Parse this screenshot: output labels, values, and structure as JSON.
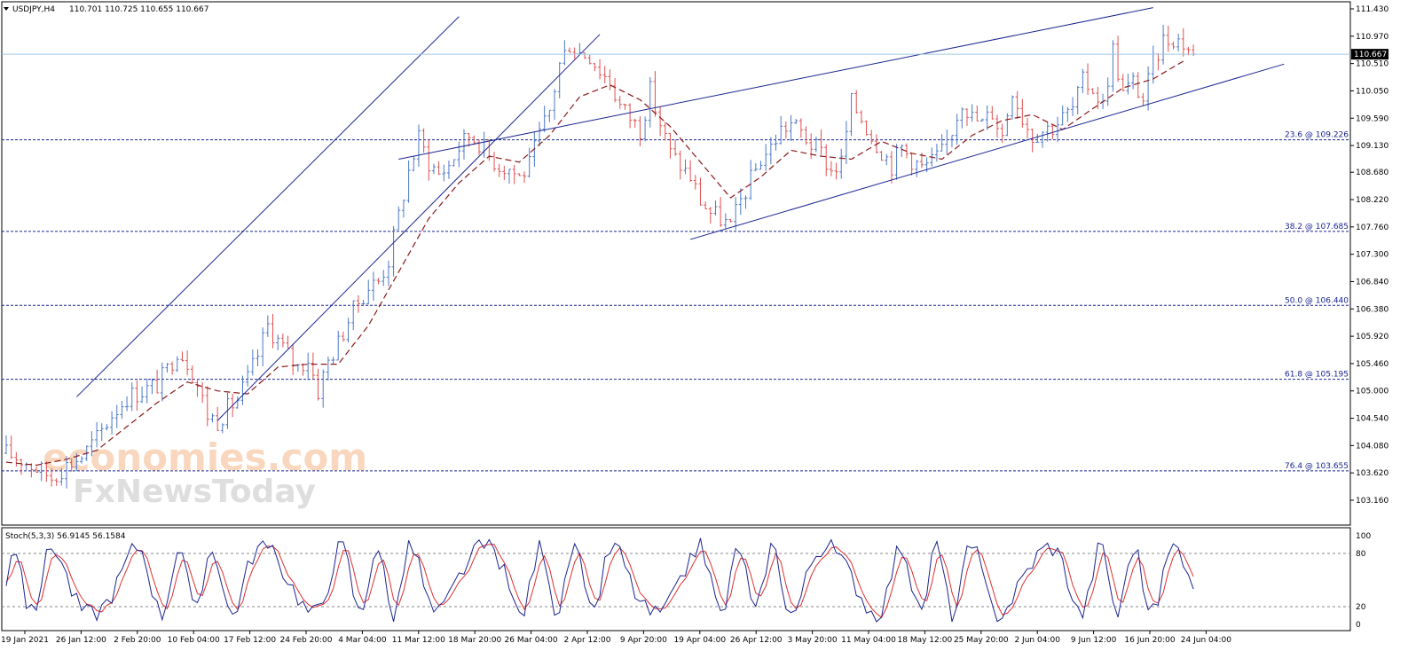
{
  "chart_data": {
    "type": "candlestick",
    "header": {
      "symbol": "USDJPY,H4",
      "ohlc": "110.701 110.725 110.655 110.667",
      "dropdown_icon": "triangle-down-icon"
    },
    "price_axis": {
      "ticks": [
        "111.430",
        "110.970",
        "110.510",
        "110.050",
        "109.590",
        "109.130",
        "108.680",
        "108.220",
        "107.760",
        "107.300",
        "106.840",
        "106.380",
        "105.920",
        "105.460",
        "105.000",
        "104.540",
        "104.080",
        "103.620",
        "103.160"
      ],
      "ylim": [
        103.16,
        111.43
      ],
      "current_price": "110.667"
    },
    "time_axis": {
      "labels": [
        "19 Jan 2021",
        "26 Jan 12:00",
        "2 Feb 20:00",
        "10 Feb 04:00",
        "17 Feb 12:00",
        "24 Feb 20:00",
        "4 Mar 04:00",
        "11 Mar 12:00",
        "18 Mar 20:00",
        "26 Mar 04:00",
        "2 Apr 12:00",
        "9 Apr 20:00",
        "19 Apr 04:00",
        "26 Apr 12:00",
        "3 May 20:00",
        "11 May 04:00",
        "18 May 12:00",
        "25 May 20:00",
        "2 Jun 04:00",
        "9 Jun 12:00",
        "16 Jun 20:00",
        "24 Jun 04:00"
      ]
    },
    "price_path": [
      [
        0,
        103.95
      ],
      [
        3,
        103.85
      ],
      [
        6,
        103.7
      ],
      [
        9,
        103.55
      ],
      [
        12,
        103.75
      ],
      [
        15,
        103.9
      ],
      [
        18,
        104.2
      ],
      [
        21,
        104.6
      ],
      [
        24,
        104.9
      ],
      [
        27,
        105.0
      ],
      [
        30,
        105.1
      ],
      [
        32,
        105.35
      ],
      [
        34,
        105.7
      ],
      [
        36,
        105.5
      ],
      [
        38,
        105.1
      ],
      [
        40,
        104.6
      ],
      [
        42,
        104.5
      ],
      [
        44,
        104.7
      ],
      [
        46,
        104.85
      ],
      [
        48,
        105.2
      ],
      [
        50,
        105.6
      ],
      [
        52,
        106.1
      ],
      [
        54,
        105.85
      ],
      [
        56,
        105.6
      ],
      [
        58,
        105.4
      ],
      [
        60,
        105.55
      ],
      [
        62,
        105.0
      ],
      [
        64,
        105.5
      ],
      [
        66,
        105.8
      ],
      [
        68,
        106.2
      ],
      [
        70,
        106.5
      ],
      [
        72,
        106.75
      ],
      [
        74,
        106.85
      ],
      [
        76,
        107.2
      ],
      [
        78,
        107.95
      ],
      [
        80,
        108.7
      ],
      [
        82,
        109.25
      ],
      [
        84,
        108.85
      ],
      [
        86,
        108.65
      ],
      [
        88,
        108.8
      ],
      [
        90,
        109.1
      ],
      [
        92,
        109.3
      ],
      [
        94,
        109.2
      ],
      [
        96,
        108.95
      ],
      [
        98,
        108.8
      ],
      [
        100,
        108.75
      ],
      [
        102,
        108.6
      ],
      [
        104,
        108.8
      ],
      [
        106,
        109.3
      ],
      [
        108,
        109.7
      ],
      [
        110,
        110.5
      ],
      [
        112,
        110.85
      ],
      [
        114,
        110.7
      ],
      [
        116,
        110.65
      ],
      [
        118,
        110.4
      ],
      [
        120,
        110.2
      ],
      [
        122,
        109.8
      ],
      [
        124,
        109.6
      ],
      [
        126,
        109.4
      ],
      [
        128,
        110.05
      ],
      [
        130,
        109.5
      ],
      [
        132,
        109.0
      ],
      [
        134,
        108.8
      ],
      [
        136,
        108.6
      ],
      [
        138,
        108.2
      ],
      [
        140,
        108.0
      ],
      [
        142,
        107.9
      ],
      [
        144,
        107.75
      ],
      [
        146,
        108.2
      ],
      [
        148,
        108.55
      ],
      [
        150,
        108.9
      ],
      [
        152,
        109.1
      ],
      [
        154,
        109.4
      ],
      [
        156,
        109.5
      ],
      [
        158,
        109.35
      ],
      [
        160,
        109.15
      ],
      [
        162,
        109.0
      ],
      [
        164,
        108.7
      ],
      [
        166,
        108.85
      ],
      [
        168,
        109.85
      ],
      [
        170,
        109.6
      ],
      [
        172,
        109.3
      ],
      [
        174,
        109.05
      ],
      [
        176,
        108.8
      ],
      [
        178,
        109.1
      ],
      [
        180,
        108.9
      ],
      [
        182,
        108.75
      ],
      [
        184,
        108.85
      ],
      [
        186,
        109.0
      ],
      [
        188,
        109.4
      ],
      [
        190,
        109.9
      ],
      [
        192,
        109.6
      ],
      [
        194,
        109.5
      ],
      [
        196,
        109.7
      ],
      [
        198,
        109.3
      ],
      [
        200,
        110.1
      ],
      [
        202,
        109.6
      ],
      [
        204,
        109.3
      ],
      [
        206,
        109.4
      ],
      [
        208,
        109.45
      ],
      [
        210,
        109.6
      ],
      [
        212,
        109.75
      ],
      [
        214,
        110.2
      ],
      [
        216,
        110.1
      ],
      [
        218,
        109.8
      ],
      [
        220,
        110.75
      ],
      [
        222,
        110.0
      ],
      [
        224,
        110.2
      ],
      [
        226,
        109.9
      ],
      [
        228,
        110.5
      ],
      [
        230,
        110.9
      ],
      [
        232,
        110.95
      ],
      [
        234,
        110.85
      ],
      [
        236,
        110.67
      ]
    ],
    "moving_average_path": [
      [
        0,
        103.8
      ],
      [
        6,
        103.75
      ],
      [
        12,
        103.85
      ],
      [
        18,
        104.0
      ],
      [
        24,
        104.4
      ],
      [
        30,
        104.8
      ],
      [
        36,
        105.15
      ],
      [
        42,
        105.0
      ],
      [
        48,
        104.95
      ],
      [
        54,
        105.4
      ],
      [
        60,
        105.45
      ],
      [
        66,
        105.45
      ],
      [
        72,
        106.1
      ],
      [
        78,
        107.0
      ],
      [
        84,
        107.9
      ],
      [
        90,
        108.5
      ],
      [
        96,
        108.95
      ],
      [
        102,
        108.85
      ],
      [
        108,
        109.3
      ],
      [
        114,
        109.95
      ],
      [
        120,
        110.15
      ],
      [
        126,
        109.9
      ],
      [
        132,
        109.45
      ],
      [
        138,
        108.85
      ],
      [
        144,
        108.25
      ],
      [
        150,
        108.6
      ],
      [
        156,
        109.05
      ],
      [
        162,
        108.95
      ],
      [
        168,
        108.9
      ],
      [
        174,
        109.2
      ],
      [
        180,
        109.0
      ],
      [
        186,
        108.9
      ],
      [
        192,
        109.3
      ],
      [
        198,
        109.55
      ],
      [
        204,
        109.65
      ],
      [
        210,
        109.4
      ],
      [
        216,
        109.75
      ],
      [
        222,
        110.1
      ],
      [
        228,
        110.25
      ],
      [
        234,
        110.55
      ]
    ],
    "trendlines": [
      {
        "from": [
          14,
          104.9
        ],
        "to": [
          90,
          111.3
        ]
      },
      {
        "from": [
          42,
          104.5
        ],
        "to": [
          118,
          111.0
        ]
      },
      {
        "from": [
          78,
          108.9
        ],
        "to": [
          228,
          111.45
        ]
      },
      {
        "from": [
          136,
          107.55
        ],
        "to": [
          254,
          110.5
        ]
      }
    ],
    "fibonacci_levels": [
      {
        "label": "23.6 @ 109.226",
        "price": 109.226
      },
      {
        "label": "38.2 @ 107.685",
        "price": 107.685
      },
      {
        "label": "50.0 @ 106.440",
        "price": 106.44
      },
      {
        "label": "61.8 @ 105.195",
        "price": 105.195
      },
      {
        "label": "76.4 @ 103.655",
        "price": 103.655
      }
    ],
    "stochastic": {
      "title": "Stoch(5,3,3) 56.9145 56.1584",
      "ticks": [
        "100",
        "80",
        "20",
        "0"
      ],
      "levels": [
        20,
        80
      ],
      "ylim": [
        0,
        100
      ]
    },
    "watermark": {
      "line1": "economies.com",
      "line2": "FxNewsToday"
    },
    "colors": {
      "bull": "#4a78c8",
      "bear": "#e05050",
      "trendline": "#1a2590",
      "fib": "#1a2590",
      "moving_average": "#8b1a1a",
      "stoch_main": "#1a2590",
      "stoch_signal": "#e03030",
      "price_line": "#9fc7e6"
    }
  }
}
